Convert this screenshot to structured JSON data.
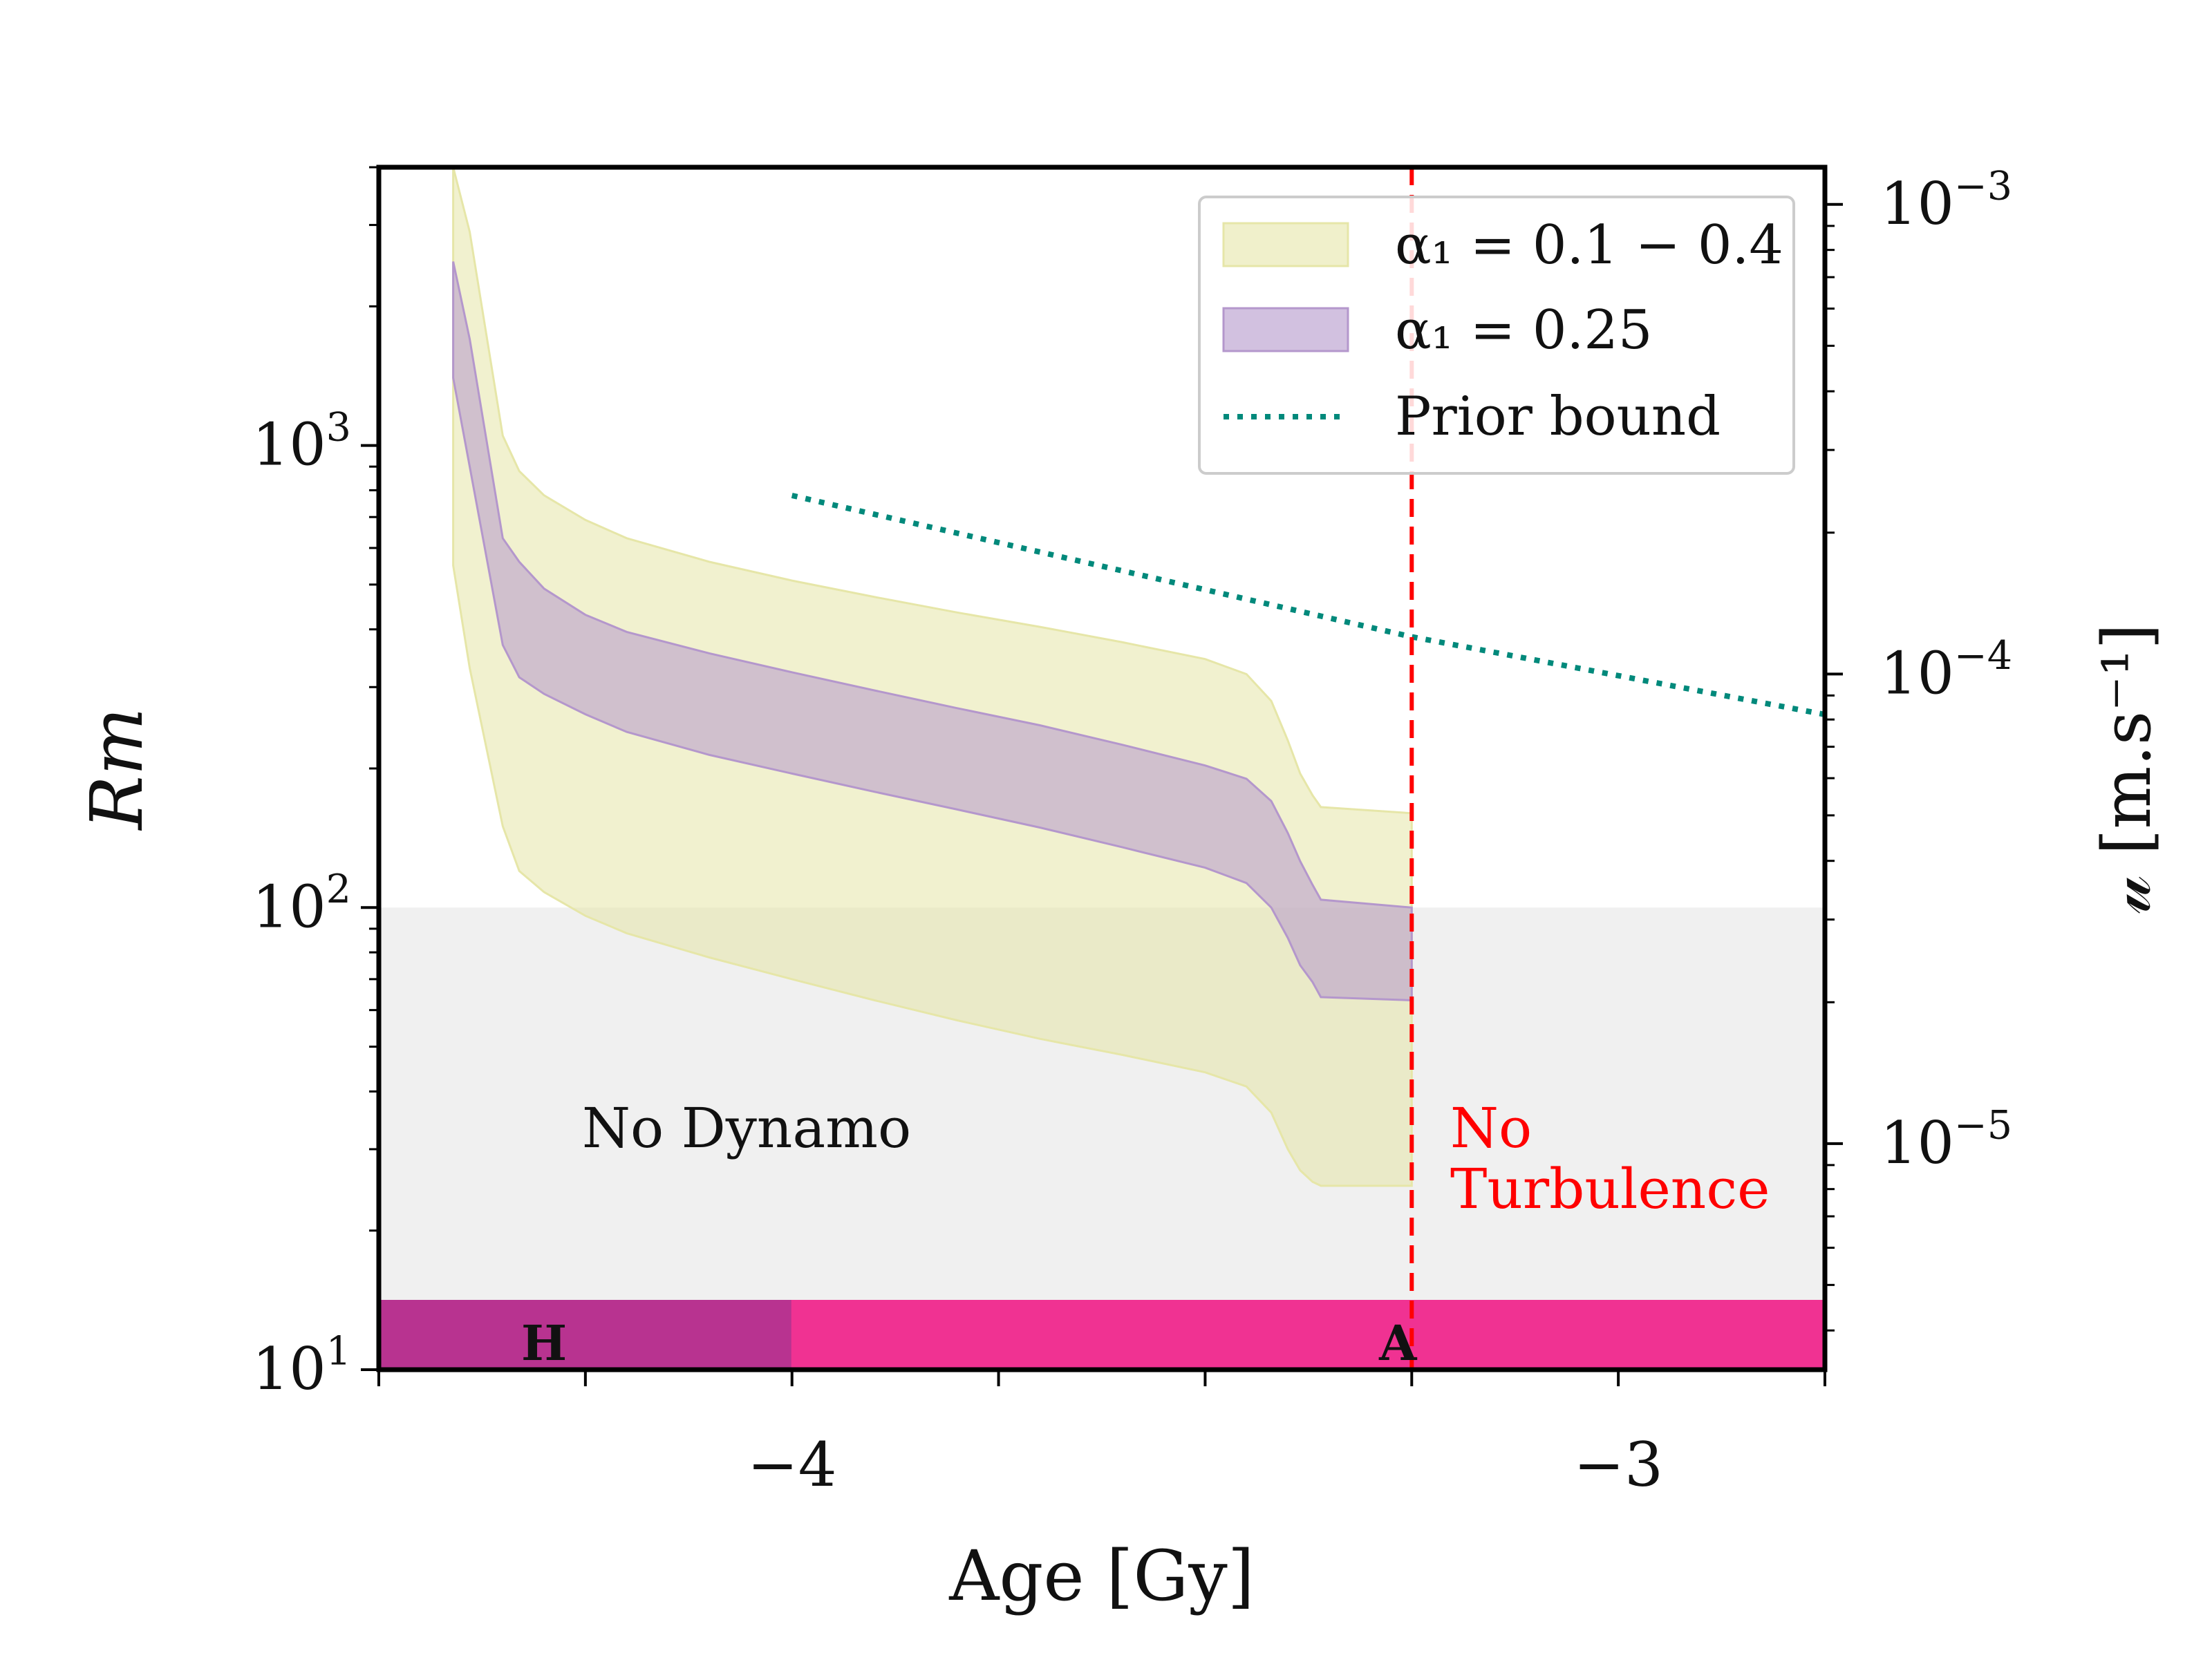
{
  "chart_data": {
    "type": "area",
    "x_label": "Age [Gy]",
    "y_label": "Rm",
    "y2_label": "𝓊 [m.s⁻¹]",
    "x_range": [
      -4.5,
      -2.75
    ],
    "y_range": [
      10,
      4000
    ],
    "y_scale": "log",
    "y2_range": [
      3.3e-06,
      0.0012
    ],
    "y2_scale": "log",
    "x_ticks": [
      {
        "value": -4,
        "label": "−4"
      },
      {
        "value": -3,
        "label": "−3"
      }
    ],
    "x_minor_ticks": [
      -4.5,
      -4.25,
      -3.75,
      -3.5,
      -3.25,
      -2.75
    ],
    "y_ticks": [
      {
        "value": 10,
        "base": "10",
        "exp": "1"
      },
      {
        "value": 100,
        "base": "10",
        "exp": "2"
      },
      {
        "value": 1000,
        "base": "10",
        "exp": "3"
      }
    ],
    "y2_ticks": [
      {
        "value": 1e-05,
        "base": "10",
        "exp": "−5"
      },
      {
        "value": 0.0001,
        "base": "10",
        "exp": "−4"
      },
      {
        "value": 0.001,
        "base": "10",
        "exp": "−3"
      }
    ],
    "series": [
      {
        "name": "α₁ = 0.1 − 0.4",
        "color": "#e6e6a8",
        "opacity": 0.55,
        "x": [
          -4.41,
          -4.39,
          -4.35,
          -4.33,
          -4.3,
          -4.25,
          -4.2,
          -4.1,
          -4.0,
          -3.9,
          -3.8,
          -3.7,
          -3.6,
          -3.5,
          -3.45,
          -3.42,
          -3.4,
          -3.385,
          -3.37,
          -3.36,
          -3.25
        ],
        "upper": [
          4000,
          2900,
          1050,
          880,
          780,
          690,
          630,
          560,
          510,
          470,
          435,
          405,
          375,
          345,
          320,
          280,
          230,
          195,
          175,
          165,
          160
        ],
        "lower": [
          550,
          330,
          150,
          120,
          108,
          96,
          88,
          78,
          70,
          63,
          57,
          52,
          48,
          44,
          41,
          36,
          30,
          27,
          25.5,
          25,
          25
        ]
      },
      {
        "name": "α₁ = 0.25",
        "color": "#b497cc",
        "opacity": 0.55,
        "x": [
          -4.41,
          -4.39,
          -4.35,
          -4.33,
          -4.3,
          -4.25,
          -4.2,
          -4.1,
          -4.0,
          -3.9,
          -3.8,
          -3.7,
          -3.6,
          -3.5,
          -3.45,
          -3.42,
          -3.4,
          -3.385,
          -3.37,
          -3.36,
          -3.25
        ],
        "upper": [
          2500,
          1700,
          630,
          560,
          490,
          430,
          395,
          355,
          323,
          295,
          270,
          248,
          225,
          203,
          190,
          170,
          145,
          126,
          112,
          104,
          100
        ],
        "lower": [
          1400,
          900,
          370,
          315,
          290,
          262,
          240,
          214,
          195,
          178,
          163,
          149,
          135,
          122,
          113,
          100,
          86,
          75,
          69,
          64,
          63
        ]
      }
    ],
    "prior_bound": {
      "name": "Prior bound",
      "color": "#00897b",
      "style": "dotted",
      "x": [
        -4.0,
        -3.25,
        -2.75
      ],
      "y2": [
        0.00024,
        0.00012,
        8.2e-05
      ]
    },
    "no_dynamo_region": {
      "y_max": 100,
      "label": "No Dynamo",
      "color": "#dddddd"
    },
    "no_turbulence": {
      "x": -3.25,
      "line1": "No",
      "line2": "Turbulence",
      "color": "#ff0000"
    },
    "epochs": [
      {
        "label": "H",
        "x_start": -4.5,
        "x_end": -4.0,
        "color": "#b83390"
      },
      {
        "label": "A",
        "x_start": -4.0,
        "x_end": -2.75,
        "color": "#f03292"
      }
    ],
    "legend": {
      "position": "top-right",
      "entries": [
        {
          "label": "α₁ = 0.1 − 0.4",
          "kind": "patch",
          "color": "#e6e6a8"
        },
        {
          "label": "α₁ = 0.25",
          "kind": "patch",
          "color": "#b497cc"
        },
        {
          "label": "Prior bound",
          "kind": "dotted",
          "color": "#00897b"
        }
      ]
    }
  }
}
